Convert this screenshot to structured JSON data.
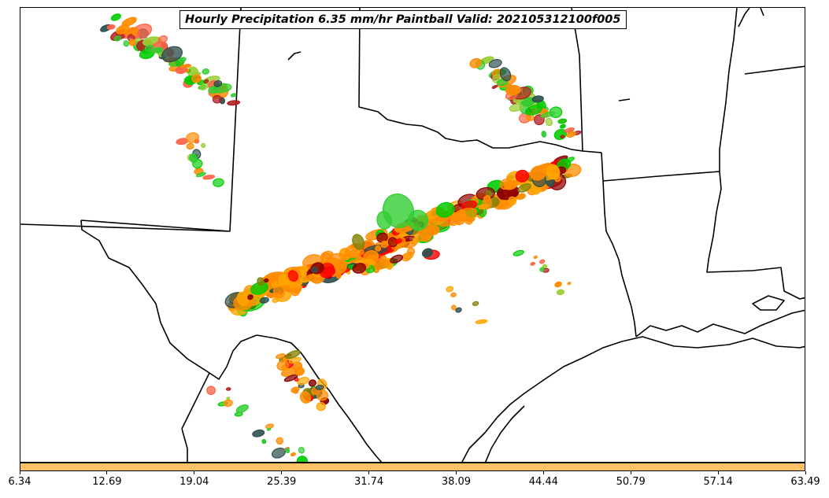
{
  "title": "Hourly Precipitation 6.35 mm/hr Paintball Valid: 202105312100f005",
  "colorbar": {
    "color": "#ffc266",
    "ticks": [
      "6.34",
      "12.69",
      "19.04",
      "25.39",
      "31.74",
      "38.09",
      "44.44",
      "50.79",
      "57.14",
      "63.49"
    ]
  },
  "colors": {
    "boundary": "#000000",
    "paintball_palette": [
      "#ff8c00",
      "#ffa500",
      "#ff0000",
      "#8b0000",
      "#b22222",
      "#00cc00",
      "#32cd32",
      "#228b22",
      "#9acd32",
      "#808000",
      "#2f4f4f",
      "#ff6347"
    ]
  }
}
